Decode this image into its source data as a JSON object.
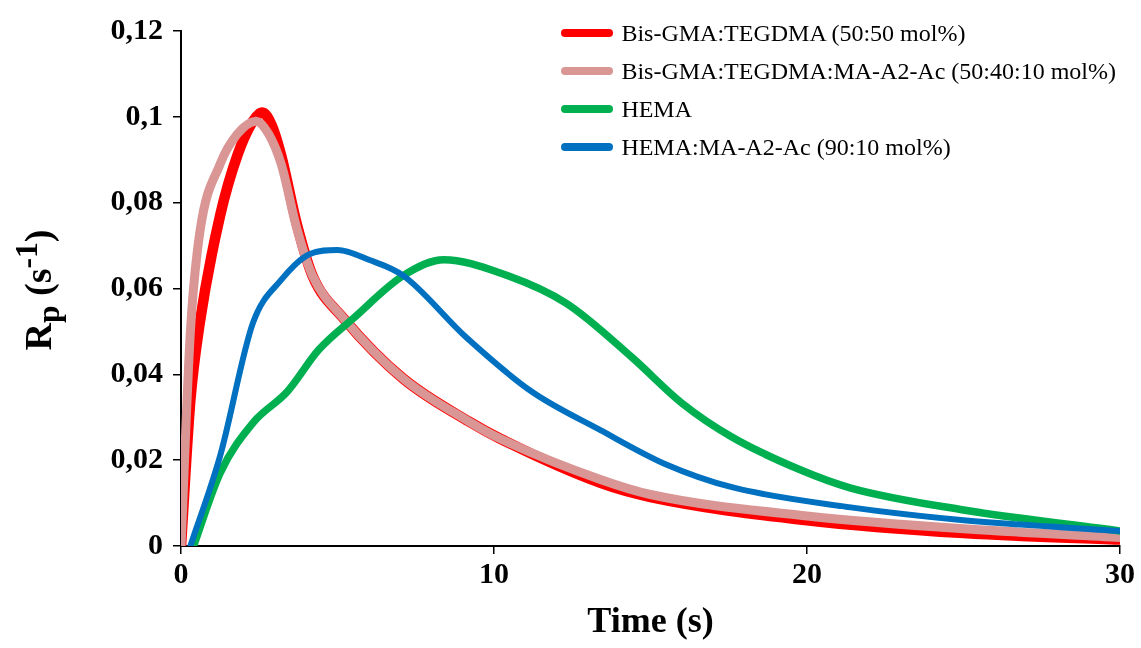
{
  "chart_data": {
    "type": "line",
    "xlabel": "Time (s)",
    "ylabel": "R$_{p}$ (s$^{-1}$)",
    "xlim": [
      0,
      30
    ],
    "xticks": [
      0,
      10,
      20,
      30
    ],
    "ylim": [
      0,
      0.12
    ],
    "yticks": [
      0,
      {
        "value": 0.02,
        "label": "0,02"
      },
      {
        "value": 0.04,
        "label": "0,04"
      },
      {
        "value": 0.06,
        "label": "0,06"
      },
      {
        "value": 0.08,
        "label": "0,08"
      },
      {
        "value": 0.1,
        "label": "0,1"
      },
      {
        "value": 0.12,
        "label": "0,12"
      }
    ],
    "grid": false,
    "legend": "top right",
    "marker": "none",
    "line_style": "solid",
    "series": [
      {
        "name": "Bis-GMA:TEGDMA (50:50 mol%)",
        "color": "#ff0000",
        "x": [
          0,
          0.3,
          0.6,
          1.25,
          1.8,
          2.3,
          2.6,
          2.9,
          3.2,
          3.7,
          4.2,
          5.2,
          7.1,
          9.2,
          10.2,
          13.4,
          15,
          20,
          25,
          30
        ],
        "values": [
          0,
          0.034,
          0.052,
          0.077,
          0.091,
          0.099,
          0.101,
          0.098,
          0.091,
          0.075,
          0.063,
          0.053,
          0.039,
          0.029,
          0.025,
          0.0147,
          0.0114,
          0.006,
          0.003,
          0.0015
        ]
      },
      {
        "name": "Bis-GMA:TEGDMA:MA-A2-Ac (50:40:10 mol%)",
        "color": "#d99694",
        "x": [
          0,
          0.3,
          0.6,
          1.25,
          1.8,
          2.4,
          2.8,
          3.2,
          3.7,
          4.2,
          5.2,
          7.1,
          9.2,
          10.2,
          13.4,
          15,
          20,
          25,
          30
        ],
        "values": [
          0,
          0.05,
          0.073,
          0.089,
          0.096,
          0.099,
          0.096,
          0.089,
          0.074,
          0.063,
          0.053,
          0.039,
          0.029,
          0.025,
          0.0155,
          0.012,
          0.007,
          0.004,
          0.002
        ]
      },
      {
        "name": "HEMA",
        "color": "#00b050",
        "x": [
          0.4,
          1.25,
          2.3,
          3.4,
          4.4,
          5.5,
          7.1,
          8.4,
          10.2,
          12.3,
          14.4,
          16,
          17.6,
          19.8,
          21.4,
          25,
          30
        ],
        "values": [
          0,
          0.017,
          0.0287,
          0.036,
          0.0457,
          0.053,
          0.063,
          0.0667,
          0.0636,
          0.0566,
          0.044,
          0.0333,
          0.0254,
          0.0177,
          0.0135,
          0.0084,
          0.0035
        ]
      },
      {
        "name": "HEMA:MA-A2-Ac (90:10 mol%)",
        "color": "#0070c0",
        "x": [
          0.3,
          1.25,
          2.3,
          3.2,
          4.1,
          5,
          6,
          7.1,
          9.1,
          11.2,
          13.4,
          15.5,
          17.6,
          21.4,
          25,
          30
        ],
        "values": [
          0,
          0.021,
          0.052,
          0.062,
          0.068,
          0.069,
          0.0667,
          0.063,
          0.0487,
          0.036,
          0.027,
          0.019,
          0.0137,
          0.009,
          0.006,
          0.0035
        ]
      }
    ]
  }
}
